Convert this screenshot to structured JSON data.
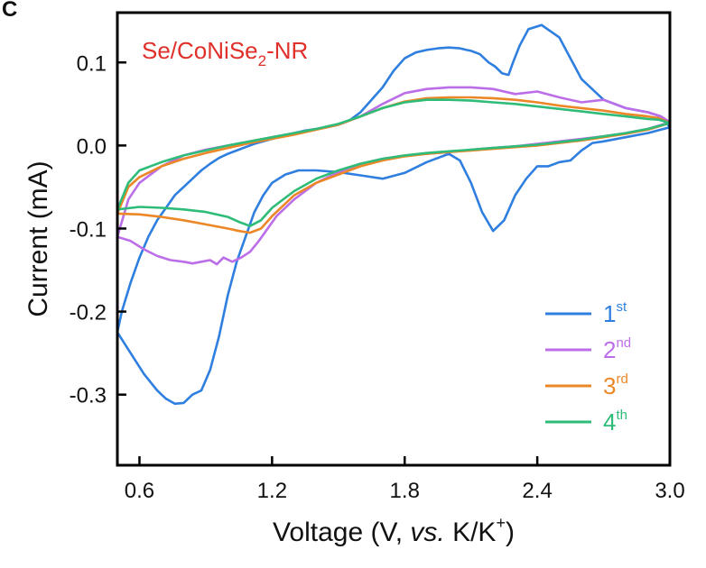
{
  "panel_label": "C",
  "chart_data": {
    "type": "line",
    "annotation": {
      "main": "Se/CoNiSe",
      "sub": "2",
      "tail": "-NR",
      "color": "#e0302a"
    },
    "xlabel": {
      "pre": "Voltage (V, ",
      "italic": "vs.",
      "post": " K/K",
      "sup": "+",
      "close": ")"
    },
    "ylabel": "Current (mA)",
    "xlim": [
      0.5,
      3.0
    ],
    "ylim": [
      -0.385,
      0.16
    ],
    "xticks": [
      0.6,
      1.2,
      1.8,
      2.4,
      3.0
    ],
    "xtick_labels": [
      "0.6",
      "1.2",
      "1.8",
      "2.4",
      "3.0"
    ],
    "yticks": [
      0.1,
      0.0,
      -0.1,
      -0.2,
      -0.3
    ],
    "ytick_labels": [
      "0.1",
      "0.0",
      "-0.1",
      "-0.2",
      "-0.3"
    ],
    "grid": false,
    "legend_position": "bottom-right",
    "series": [
      {
        "name": "1",
        "sup": "st",
        "color": "#2f7fe0",
        "x": [
          0.5,
          0.56,
          0.62,
          0.68,
          0.72,
          0.76,
          0.8,
          0.84,
          0.88,
          0.92,
          0.96,
          1.0,
          1.04,
          1.08,
          1.12,
          1.16,
          1.2,
          1.26,
          1.32,
          1.4,
          1.5,
          1.6,
          1.7,
          1.8,
          1.9,
          2.0,
          2.05,
          2.1,
          2.15,
          2.2,
          2.25,
          2.3,
          2.35,
          2.4,
          2.45,
          2.5,
          2.55,
          2.6,
          2.65,
          2.7,
          2.8,
          2.9,
          3.0,
          2.96,
          2.9,
          2.8,
          2.7,
          2.6,
          2.5,
          2.42,
          2.36,
          2.32,
          2.29,
          2.27,
          2.24,
          2.21,
          2.18,
          2.16,
          2.14,
          2.12,
          2.1,
          2.08,
          2.05,
          2.0,
          1.95,
          1.9,
          1.85,
          1.8,
          1.75,
          1.7,
          1.65,
          1.6,
          1.55,
          1.5,
          1.45,
          1.4,
          1.35,
          1.3,
          1.25,
          1.2,
          1.16,
          1.12,
          1.08,
          1.04,
          1.0,
          0.96,
          0.92,
          0.88,
          0.84,
          0.8,
          0.76,
          0.72,
          0.68,
          0.64,
          0.6,
          0.56,
          0.52,
          0.5
        ],
        "y": [
          -0.225,
          -0.25,
          -0.275,
          -0.295,
          -0.305,
          -0.311,
          -0.31,
          -0.3,
          -0.295,
          -0.27,
          -0.23,
          -0.18,
          -0.14,
          -0.11,
          -0.08,
          -0.06,
          -0.045,
          -0.035,
          -0.03,
          -0.03,
          -0.032,
          -0.036,
          -0.04,
          -0.033,
          -0.02,
          -0.01,
          -0.018,
          -0.045,
          -0.08,
          -0.103,
          -0.09,
          -0.06,
          -0.04,
          -0.025,
          -0.025,
          -0.02,
          -0.018,
          -0.006,
          0.003,
          0.005,
          0.01,
          0.015,
          0.022,
          0.035,
          0.04,
          0.045,
          0.055,
          0.08,
          0.13,
          0.145,
          0.14,
          0.12,
          0.1,
          0.085,
          0.087,
          0.095,
          0.1,
          0.105,
          0.11,
          0.112,
          0.114,
          0.115,
          0.117,
          0.118,
          0.117,
          0.115,
          0.112,
          0.105,
          0.09,
          0.07,
          0.055,
          0.04,
          0.03,
          0.025,
          0.022,
          0.02,
          0.018,
          0.015,
          0.012,
          0.008,
          0.005,
          0.002,
          -0.002,
          -0.006,
          -0.01,
          -0.015,
          -0.022,
          -0.03,
          -0.04,
          -0.05,
          -0.06,
          -0.075,
          -0.09,
          -0.11,
          -0.135,
          -0.165,
          -0.2,
          -0.225
        ]
      },
      {
        "name": "2",
        "sup": "nd",
        "color": "#bb6ee8",
        "x": [
          0.5,
          0.56,
          0.62,
          0.68,
          0.74,
          0.8,
          0.84,
          0.88,
          0.92,
          0.95,
          0.98,
          1.02,
          1.06,
          1.1,
          1.14,
          1.18,
          1.22,
          1.3,
          1.4,
          1.5,
          1.6,
          1.7,
          1.8,
          1.9,
          2.0,
          2.1,
          2.2,
          2.3,
          2.4,
          2.5,
          2.6,
          2.7,
          2.8,
          2.9,
          3.0,
          2.96,
          2.9,
          2.8,
          2.7,
          2.6,
          2.5,
          2.4,
          2.3,
          2.2,
          2.1,
          2.0,
          1.9,
          1.8,
          1.7,
          1.6,
          1.5,
          1.4,
          1.3,
          1.2,
          1.1,
          1.0,
          0.9,
          0.8,
          0.7,
          0.6,
          0.55,
          0.5
        ],
        "y": [
          -0.11,
          -0.115,
          -0.125,
          -0.133,
          -0.138,
          -0.14,
          -0.142,
          -0.14,
          -0.138,
          -0.143,
          -0.135,
          -0.14,
          -0.135,
          -0.128,
          -0.115,
          -0.1,
          -0.085,
          -0.065,
          -0.045,
          -0.032,
          -0.022,
          -0.016,
          -0.012,
          -0.01,
          -0.008,
          -0.005,
          -0.003,
          -0.001,
          0.002,
          0.005,
          0.008,
          0.011,
          0.015,
          0.02,
          0.028,
          0.035,
          0.04,
          0.045,
          0.055,
          0.052,
          0.058,
          0.065,
          0.062,
          0.068,
          0.07,
          0.07,
          0.068,
          0.063,
          0.05,
          0.035,
          0.025,
          0.02,
          0.015,
          0.01,
          0.005,
          0.0,
          -0.005,
          -0.012,
          -0.025,
          -0.045,
          -0.065,
          -0.11
        ]
      },
      {
        "name": "3",
        "sup": "rd",
        "color": "#ec8727",
        "x": [
          0.5,
          0.6,
          0.7,
          0.8,
          0.9,
          1.0,
          1.05,
          1.1,
          1.15,
          1.2,
          1.3,
          1.4,
          1.5,
          1.6,
          1.7,
          1.8,
          1.9,
          2.0,
          2.1,
          2.2,
          2.3,
          2.4,
          2.5,
          2.6,
          2.7,
          2.8,
          2.9,
          3.0,
          2.95,
          2.9,
          2.8,
          2.7,
          2.6,
          2.5,
          2.4,
          2.3,
          2.2,
          2.1,
          2.0,
          1.9,
          1.8,
          1.7,
          1.6,
          1.5,
          1.4,
          1.3,
          1.2,
          1.1,
          1.0,
          0.9,
          0.8,
          0.7,
          0.6,
          0.55,
          0.5
        ],
        "y": [
          -0.082,
          -0.083,
          -0.086,
          -0.09,
          -0.095,
          -0.1,
          -0.103,
          -0.105,
          -0.1,
          -0.085,
          -0.06,
          -0.045,
          -0.035,
          -0.025,
          -0.018,
          -0.013,
          -0.01,
          -0.008,
          -0.006,
          -0.004,
          -0.002,
          0.0,
          0.003,
          0.006,
          0.01,
          0.014,
          0.019,
          0.027,
          0.033,
          0.035,
          0.038,
          0.042,
          0.045,
          0.048,
          0.052,
          0.055,
          0.057,
          0.058,
          0.058,
          0.057,
          0.053,
          0.045,
          0.035,
          0.025,
          0.019,
          0.013,
          0.008,
          0.003,
          -0.003,
          -0.009,
          -0.016,
          -0.025,
          -0.038,
          -0.05,
          -0.082
        ]
      },
      {
        "name": "4",
        "sup": "th",
        "color": "#2ebc78",
        "x": [
          0.5,
          0.6,
          0.7,
          0.8,
          0.9,
          1.0,
          1.05,
          1.1,
          1.15,
          1.2,
          1.3,
          1.4,
          1.5,
          1.6,
          1.7,
          1.8,
          1.9,
          2.0,
          2.1,
          2.2,
          2.3,
          2.4,
          2.5,
          2.6,
          2.7,
          2.8,
          2.9,
          3.0,
          2.95,
          2.9,
          2.8,
          2.7,
          2.6,
          2.5,
          2.4,
          2.3,
          2.2,
          2.1,
          2.0,
          1.9,
          1.8,
          1.7,
          1.6,
          1.5,
          1.4,
          1.3,
          1.2,
          1.1,
          1.0,
          0.9,
          0.8,
          0.7,
          0.6,
          0.55,
          0.5
        ],
        "y": [
          -0.077,
          -0.074,
          -0.075,
          -0.077,
          -0.08,
          -0.086,
          -0.092,
          -0.097,
          -0.09,
          -0.075,
          -0.055,
          -0.04,
          -0.03,
          -0.022,
          -0.016,
          -0.012,
          -0.009,
          -0.007,
          -0.005,
          -0.003,
          -0.001,
          0.001,
          0.004,
          0.007,
          0.011,
          0.015,
          0.02,
          0.027,
          0.031,
          0.032,
          0.035,
          0.038,
          0.041,
          0.044,
          0.047,
          0.05,
          0.052,
          0.054,
          0.055,
          0.055,
          0.052,
          0.045,
          0.035,
          0.026,
          0.02,
          0.015,
          0.01,
          0.005,
          0.0,
          -0.006,
          -0.012,
          -0.02,
          -0.03,
          -0.045,
          -0.077
        ]
      }
    ]
  }
}
